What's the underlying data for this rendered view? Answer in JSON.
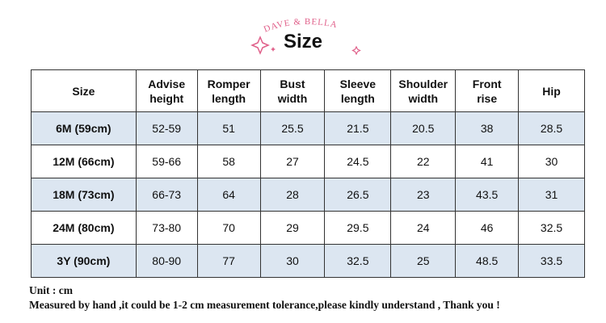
{
  "header": {
    "brand": "DAVE & BELLA",
    "title": "Size"
  },
  "table": {
    "columns": [
      "Size",
      "Advise\nheight",
      "Romper\nlength",
      "Bust\nwidth",
      "Sleeve\nlength",
      "Shoulder\nwidth",
      "Front\nrise",
      "Hip"
    ],
    "rows": [
      [
        "6M (59cm)",
        "52-59",
        "51",
        "25.5",
        "21.5",
        "20.5",
        "38",
        "28.5"
      ],
      [
        "12M (66cm)",
        "59-66",
        "58",
        "27",
        "24.5",
        "22",
        "41",
        "30"
      ],
      [
        "18M (73cm)",
        "66-73",
        "64",
        "28",
        "26.5",
        "23",
        "43.5",
        "31"
      ],
      [
        "24M (80cm)",
        "73-80",
        "70",
        "29",
        "29.5",
        "24",
        "46",
        "32.5"
      ],
      [
        "3Y (90cm)",
        "80-90",
        "77",
        "30",
        "32.5",
        "25",
        "48.5",
        "33.5"
      ]
    ]
  },
  "footer": {
    "unit": "Unit : cm",
    "note": "Measured by hand ,it could be 1-2 cm measurement tolerance,please kindly understand , Thank you !"
  }
}
